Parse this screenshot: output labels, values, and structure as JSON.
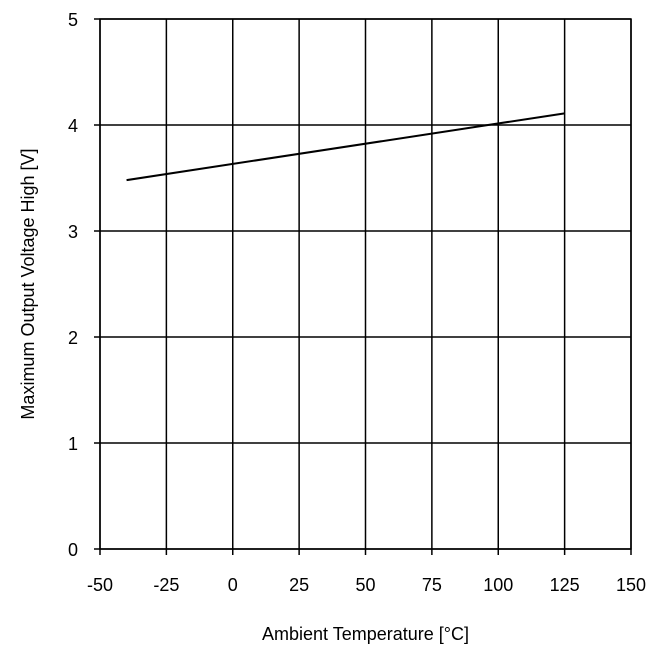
{
  "chart_data": {
    "type": "line",
    "title": "",
    "xlabel": "Ambient Temperature [°C]",
    "ylabel": "Maximum Output Voltage High [V]",
    "xlim": [
      -50,
      150
    ],
    "ylim": [
      0,
      5
    ],
    "xticks": [
      -50,
      -25,
      0,
      25,
      50,
      75,
      100,
      125,
      150
    ],
    "yticks": [
      0,
      1,
      2,
      3,
      4,
      5
    ],
    "grid": true,
    "legend": "none",
    "series": [
      {
        "x": [
          -40,
          125
        ],
        "y": [
          3.48,
          4.11
        ],
        "color": "#000000"
      }
    ]
  }
}
